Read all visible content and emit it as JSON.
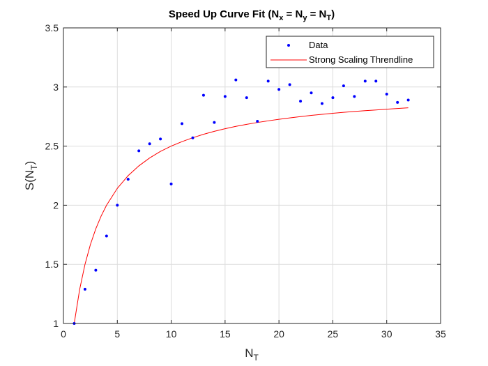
{
  "chart_data": {
    "type": "scatter",
    "title": {
      "main": "Speed Up Curve Fit (N",
      "sub_x": "x",
      "eq1": " = N",
      "sub_y": "y",
      "eq2": " = N",
      "sub_t": "T",
      "close": ")"
    },
    "xlabel": {
      "main": "N",
      "sub": "T"
    },
    "ylabel": {
      "main": "S(N",
      "sub": "T",
      "close": ")"
    },
    "xlim": [
      0,
      35
    ],
    "ylim": [
      1,
      3.5
    ],
    "xticks": [
      0,
      5,
      10,
      15,
      20,
      25,
      30,
      35
    ],
    "yticks": [
      1,
      1.5,
      2,
      2.5,
      3,
      3.5
    ],
    "xtick_labels": [
      "0",
      "5",
      "10",
      "15",
      "20",
      "25",
      "30",
      "35"
    ],
    "ytick_labels": [
      "1",
      "1.5",
      "2",
      "2.5",
      "3",
      "3.5"
    ],
    "grid": true,
    "legend_position": "top-right",
    "series": [
      {
        "name": "Data",
        "kind": "points",
        "color": "#0000ff",
        "x": [
          1,
          2,
          3,
          4,
          5,
          6,
          7,
          8,
          9,
          10,
          11,
          12,
          13,
          14,
          15,
          16,
          17,
          18,
          19,
          20,
          21,
          22,
          23,
          24,
          25,
          26,
          27,
          28,
          29,
          30,
          31,
          32
        ],
        "y": [
          1.0,
          1.29,
          1.45,
          1.74,
          2.0,
          2.22,
          2.46,
          2.52,
          2.56,
          2.18,
          2.69,
          2.57,
          2.93,
          2.7,
          2.92,
          3.06,
          2.91,
          2.71,
          3.05,
          2.98,
          3.02,
          2.88,
          2.95,
          2.86,
          2.91,
          3.01,
          2.92,
          3.05,
          3.05,
          2.94,
          2.87,
          2.89
        ]
      },
      {
        "name": "Strong Scaling Threndline",
        "kind": "line",
        "color": "#ff0000",
        "x": [
          1,
          1.5,
          2,
          2.5,
          3,
          3.5,
          4,
          5,
          6,
          7,
          8,
          9,
          10,
          11,
          12,
          13,
          14,
          15,
          16,
          17,
          18,
          19,
          20,
          21,
          22,
          23,
          24,
          25,
          26,
          27,
          28,
          29,
          30,
          31,
          32
        ],
        "y": [
          1.0,
          1.286,
          1.5,
          1.667,
          1.8,
          1.909,
          2.0,
          2.143,
          2.25,
          2.333,
          2.4,
          2.455,
          2.5,
          2.538,
          2.571,
          2.6,
          2.625,
          2.647,
          2.667,
          2.684,
          2.7,
          2.714,
          2.727,
          2.739,
          2.75,
          2.76,
          2.769,
          2.778,
          2.786,
          2.793,
          2.8,
          2.806,
          2.812,
          2.818,
          2.824
        ]
      }
    ]
  }
}
